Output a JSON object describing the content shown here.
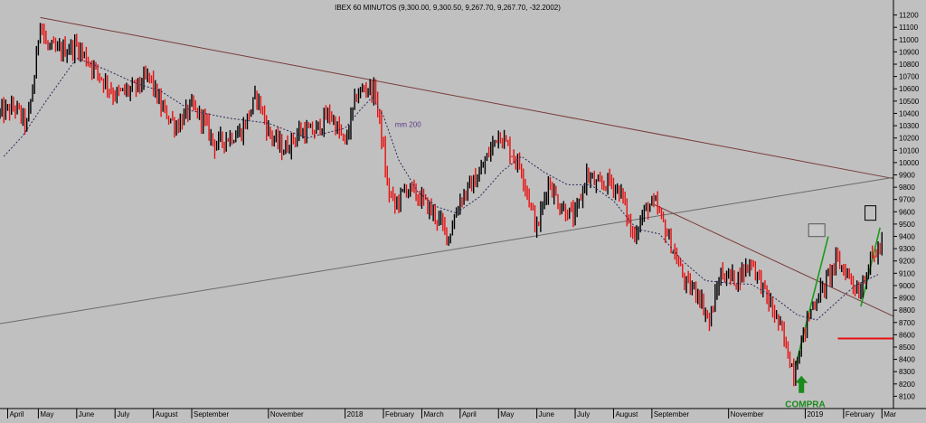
{
  "chart_data": {
    "type": "ohlc",
    "title": "IBEX 60 MINUTOS (9,300.00, 9,300.50, 9,267.70, 9,267.70, -32.2002)",
    "ylim": [
      8000,
      11300
    ],
    "y_ticks": [
      8100,
      8200,
      8300,
      8400,
      8500,
      8600,
      8700,
      8800,
      8900,
      9000,
      9100,
      9200,
      9300,
      9400,
      9500,
      9600,
      9700,
      9800,
      9900,
      10000,
      10100,
      10200,
      10300,
      10400,
      10500,
      10600,
      10700,
      10800,
      10900,
      11000,
      11100,
      11200
    ],
    "x_tick_labels": [
      "April",
      "May",
      "June",
      "July",
      "August",
      "September",
      "November",
      "2018",
      "February",
      "March",
      "April",
      "May",
      "June",
      "July",
      "August",
      "September",
      "November",
      "2019",
      "February",
      "Mar"
    ],
    "x_tick_times": [
      0.2,
      1.0,
      2.0,
      3.0,
      4.0,
      5.0,
      7.0,
      9.0,
      10.0,
      11.0,
      12.0,
      13.0,
      14.0,
      15.0,
      16.0,
      17.0,
      19.0,
      21.0,
      22.0,
      23.0
    ],
    "xlim": [
      0,
      23.3
    ],
    "price_path": [
      [
        0.0,
        10400
      ],
      [
        0.4,
        10450
      ],
      [
        0.7,
        10300
      ],
      [
        0.9,
        10700
      ],
      [
        1.05,
        11180
      ],
      [
        1.2,
        10950
      ],
      [
        1.5,
        10900
      ],
      [
        2.0,
        10950
      ],
      [
        2.5,
        10750
      ],
      [
        3.0,
        10550
      ],
      [
        3.5,
        10600
      ],
      [
        3.9,
        10700
      ],
      [
        4.2,
        10450
      ],
      [
        4.6,
        10300
      ],
      [
        5.0,
        10450
      ],
      [
        5.3,
        10350
      ],
      [
        5.6,
        10150
      ],
      [
        5.9,
        10200
      ],
      [
        6.3,
        10250
      ],
      [
        6.7,
        10550
      ],
      [
        7.0,
        10250
      ],
      [
        7.4,
        10100
      ],
      [
        7.8,
        10250
      ],
      [
        8.2,
        10250
      ],
      [
        8.6,
        10400
      ],
      [
        9.0,
        10150
      ],
      [
        9.3,
        10550
      ],
      [
        9.6,
        10620
      ],
      [
        9.8,
        10550
      ],
      [
        10.0,
        10100
      ],
      [
        10.1,
        9800
      ],
      [
        10.3,
        9650
      ],
      [
        10.6,
        9800
      ],
      [
        11.0,
        9700
      ],
      [
        11.4,
        9550
      ],
      [
        11.7,
        9400
      ],
      [
        12.0,
        9700
      ],
      [
        12.5,
        9900
      ],
      [
        13.0,
        10250
      ],
      [
        13.3,
        10100
      ],
      [
        13.6,
        9950
      ],
      [
        14.0,
        9450
      ],
      [
        14.3,
        9850
      ],
      [
        14.6,
        9650
      ],
      [
        15.0,
        9550
      ],
      [
        15.3,
        9900
      ],
      [
        15.6,
        9800
      ],
      [
        15.9,
        9850
      ],
      [
        16.2,
        9750
      ],
      [
        16.5,
        9400
      ],
      [
        16.9,
        9650
      ],
      [
        17.1,
        9650
      ],
      [
        17.3,
        9500
      ],
      [
        17.6,
        9250
      ],
      [
        17.9,
        9000
      ],
      [
        18.2,
        8950
      ],
      [
        18.5,
        8700
      ],
      [
        18.8,
        9100
      ],
      [
        19.2,
        9050
      ],
      [
        19.6,
        9200
      ],
      [
        20.0,
        8900
      ],
      [
        20.3,
        8700
      ],
      [
        20.5,
        8500
      ],
      [
        20.7,
        8300
      ],
      [
        20.9,
        8550
      ],
      [
        21.2,
        8850
      ],
      [
        21.5,
        9000
      ],
      [
        21.8,
        9200
      ],
      [
        22.1,
        9100
      ],
      [
        22.4,
        8950
      ],
      [
        22.7,
        9200
      ],
      [
        23.0,
        9330
      ]
    ],
    "series": [
      {
        "name": "mm 200",
        "color": "#2a2a5a",
        "points": [
          [
            0.1,
            10050
          ],
          [
            0.6,
            10220
          ],
          [
            1.2,
            10500
          ],
          [
            2.0,
            10850
          ],
          [
            2.8,
            10750
          ],
          [
            3.5,
            10650
          ],
          [
            4.2,
            10580
          ],
          [
            5.0,
            10420
          ],
          [
            6.0,
            10360
          ],
          [
            7.0,
            10320
          ],
          [
            8.0,
            10200
          ],
          [
            9.0,
            10280
          ],
          [
            9.4,
            10430
          ],
          [
            9.7,
            10530
          ],
          [
            10.0,
            10380
          ],
          [
            10.4,
            10020
          ],
          [
            10.9,
            9760
          ],
          [
            11.4,
            9640
          ],
          [
            11.9,
            9590
          ],
          [
            12.5,
            9720
          ],
          [
            13.1,
            9930
          ],
          [
            13.6,
            10050
          ],
          [
            14.2,
            9920
          ],
          [
            14.8,
            9820
          ],
          [
            15.4,
            9820
          ],
          [
            16.0,
            9690
          ],
          [
            16.6,
            9460
          ],
          [
            17.2,
            9420
          ],
          [
            17.8,
            9200
          ],
          [
            18.4,
            9040
          ],
          [
            19.0,
            9020
          ],
          [
            19.6,
            9010
          ],
          [
            20.2,
            8900
          ],
          [
            20.8,
            8760
          ],
          [
            21.3,
            8720
          ],
          [
            21.8,
            8860
          ],
          [
            22.3,
            9000
          ],
          [
            22.9,
            9090
          ]
        ]
      },
      {
        "name": "trendline-upper",
        "color": "#7a3a3a",
        "points": [
          [
            1.05,
            11180
          ],
          [
            23.3,
            9870
          ]
        ]
      },
      {
        "name": "trendline-support",
        "color": "#6a6a6a",
        "points": [
          [
            0.0,
            8690
          ],
          [
            23.3,
            9880
          ]
        ]
      },
      {
        "name": "trendline-down",
        "color": "#7a3a3a",
        "points": [
          [
            17.05,
            9660
          ],
          [
            23.3,
            8750
          ]
        ]
      },
      {
        "name": "green-rise-1",
        "color": "#1a9a1a",
        "points": [
          [
            20.75,
            8350
          ],
          [
            21.6,
            9400
          ]
        ]
      },
      {
        "name": "green-rise-2",
        "color": "#1a9a1a",
        "points": [
          [
            22.45,
            8830
          ],
          [
            22.95,
            9470
          ]
        ]
      },
      {
        "name": "horizontal-level",
        "color": "#e81010",
        "points": [
          [
            21.85,
            8570
          ],
          [
            23.3,
            8570
          ]
        ]
      }
    ],
    "annotations": {
      "ma_label": {
        "text": "mm 200",
        "at": [
          10.3,
          10290
        ]
      },
      "buy_label": {
        "text": "COMPRA",
        "at": [
          21.0,
          8010
        ]
      },
      "buy_arrow": {
        "color": "#1a8a1a",
        "at": [
          20.9,
          8200
        ]
      },
      "boxes": [
        {
          "at": [
            21.3,
            9450
          ]
        },
        {
          "at": [
            22.7,
            9590
          ]
        }
      ]
    },
    "grid": false,
    "colors": {
      "background": "#c0c0c0",
      "up_bar": "#000000",
      "down_bar": "#e81010",
      "buy": "#1a8a1a"
    }
  }
}
